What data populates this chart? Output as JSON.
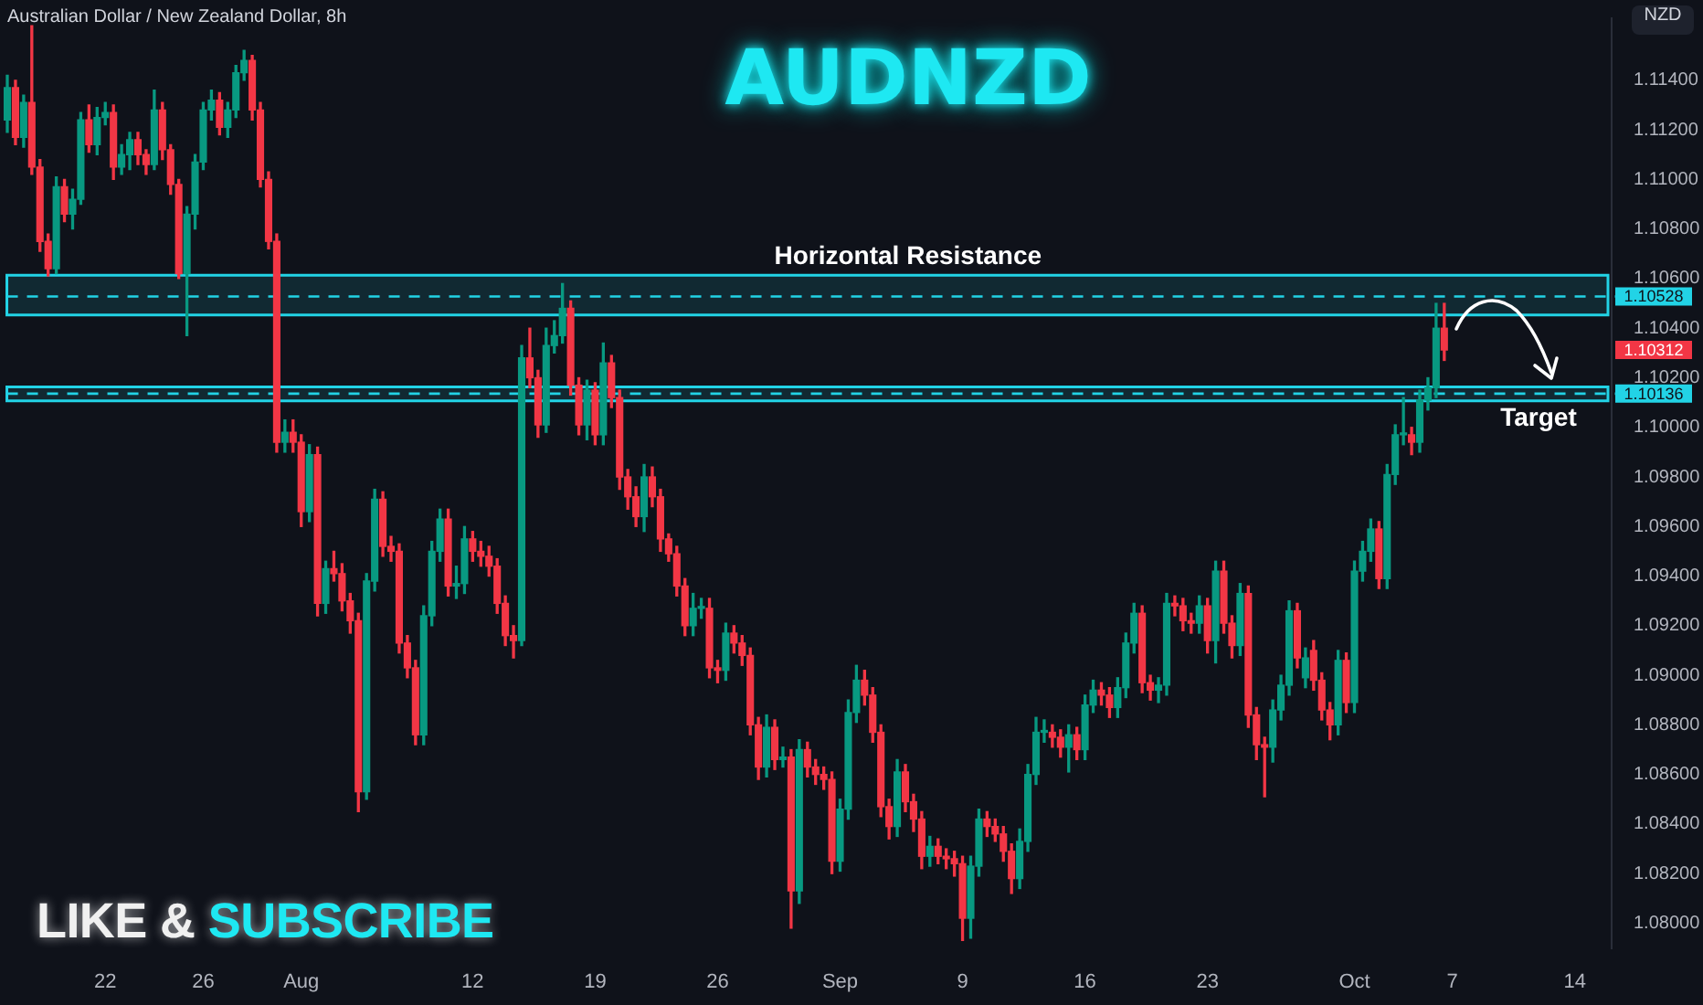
{
  "chart_data": {
    "type": "candlestick",
    "title": "AUDNZD",
    "subtitle": "Australian Dollar / New Zealand Dollar, 8h",
    "ylabel": "NZD",
    "categories": [
      null,
      null,
      null,
      null,
      null,
      null,
      null,
      null,
      null,
      null,
      null,
      null,
      "22",
      null,
      null,
      null,
      null,
      null,
      null,
      null,
      null,
      null,
      null,
      null,
      "26",
      null,
      null,
      null,
      null,
      null,
      null,
      null,
      null,
      null,
      null,
      null,
      "Aug",
      null,
      null,
      null,
      null,
      null,
      null,
      null,
      null,
      null,
      null,
      null,
      null,
      null,
      null,
      null,
      null,
      null,
      null,
      null,
      null,
      "12",
      null,
      null,
      null,
      null,
      null,
      null,
      null,
      null,
      null,
      null,
      null,
      null,
      null,
      null,
      "19",
      null,
      null,
      null,
      null,
      null,
      null,
      null,
      null,
      null,
      null,
      null,
      null,
      null,
      null,
      "26",
      null,
      null,
      null,
      null,
      null,
      null,
      null,
      null,
      null,
      null,
      null,
      null,
      null,
      null,
      "Sep",
      null,
      null,
      null,
      null,
      null,
      null,
      null,
      null,
      null,
      null,
      null,
      null,
      null,
      null,
      "9",
      null,
      null,
      null,
      null,
      null,
      null,
      null,
      null,
      null,
      null,
      null,
      null,
      null,
      null,
      "16",
      null,
      null,
      null,
      null,
      null,
      null,
      null,
      null,
      null,
      null,
      null,
      null,
      null,
      null,
      "23",
      null,
      null,
      null,
      null,
      null,
      null,
      null,
      null,
      null,
      null,
      null,
      null,
      null,
      null,
      null,
      null,
      null,
      "Oct",
      null,
      null,
      null,
      null,
      null,
      null,
      null,
      null,
      null,
      null,
      null,
      "7",
      null,
      null,
      null,
      null,
      null,
      null,
      null,
      null,
      null,
      null,
      null,
      null,
      null,
      null,
      "14",
      null,
      null,
      null,
      null
    ],
    "ohlc": [
      [
        1.1124,
        1.1142,
        1.1119,
        1.1137
      ],
      [
        1.1137,
        1.114,
        1.1114,
        1.1117
      ],
      [
        1.1117,
        1.1134,
        1.1113,
        1.1131
      ],
      [
        1.1131,
        1.1162,
        1.1102,
        1.1105
      ],
      [
        1.1105,
        1.1108,
        1.1071,
        1.1075
      ],
      [
        1.1075,
        1.1078,
        1.1061,
        1.1064
      ],
      [
        1.1064,
        1.1101,
        1.1062,
        1.1097
      ],
      [
        1.1097,
        1.11,
        1.1083,
        1.1086
      ],
      [
        1.1086,
        1.1096,
        1.108,
        1.1092
      ],
      [
        1.1092,
        1.1127,
        1.109,
        1.1124
      ],
      [
        1.1124,
        1.113,
        1.1111,
        1.1114
      ],
      [
        1.1114,
        1.1129,
        1.111,
        1.1125
      ],
      [
        1.1125,
        1.1131,
        1.1122,
        1.1127
      ],
      [
        1.1127,
        1.113,
        1.11,
        1.1105
      ],
      [
        1.1105,
        1.1114,
        1.1102,
        1.111
      ],
      [
        1.111,
        1.1119,
        1.1104,
        1.1116
      ],
      [
        1.1116,
        1.1119,
        1.1106,
        1.111
      ],
      [
        1.111,
        1.1112,
        1.1102,
        1.1106
      ],
      [
        1.1106,
        1.1136,
        1.1104,
        1.1128
      ],
      [
        1.1128,
        1.1131,
        1.1108,
        1.1112
      ],
      [
        1.1112,
        1.1114,
        1.1094,
        1.1098
      ],
      [
        1.1098,
        1.11,
        1.106,
        1.1062
      ],
      [
        1.1062,
        1.1089,
        1.1037,
        1.1086
      ],
      [
        1.1086,
        1.111,
        1.108,
        1.1107
      ],
      [
        1.1107,
        1.1131,
        1.1104,
        1.1128
      ],
      [
        1.1128,
        1.1136,
        1.1124,
        1.1132
      ],
      [
        1.1132,
        1.1135,
        1.1118,
        1.1121
      ],
      [
        1.1121,
        1.1131,
        1.1117,
        1.1128
      ],
      [
        1.1128,
        1.1146,
        1.1125,
        1.1143
      ],
      [
        1.1143,
        1.1152,
        1.114,
        1.1148
      ],
      [
        1.1148,
        1.115,
        1.1124,
        1.1128
      ],
      [
        1.1128,
        1.1131,
        1.1097,
        1.11
      ],
      [
        1.11,
        1.1103,
        1.1072,
        1.1075
      ],
      [
        1.1075,
        1.1078,
        1.099,
        1.0994
      ],
      [
        1.0994,
        1.1003,
        1.099,
        1.0998
      ],
      [
        1.0998,
        1.1003,
        1.099,
        1.0994
      ],
      [
        1.0994,
        1.0997,
        1.096,
        1.0966
      ],
      [
        1.0966,
        1.0993,
        1.0962,
        1.0989
      ],
      [
        1.0989,
        1.0992,
        1.0924,
        1.0929
      ],
      [
        1.0929,
        1.0946,
        1.0925,
        1.0943
      ],
      [
        1.0943,
        1.095,
        1.0938,
        1.0941
      ],
      [
        1.0941,
        1.0945,
        1.0926,
        1.093
      ],
      [
        1.093,
        1.0933,
        1.0917,
        1.0922
      ],
      [
        1.0922,
        1.0925,
        1.0845,
        1.0853
      ],
      [
        1.0853,
        1.0941,
        1.085,
        1.0938
      ],
      [
        1.0938,
        1.0975,
        1.0934,
        1.0971
      ],
      [
        1.0971,
        1.0974,
        1.0948,
        1.0952
      ],
      [
        1.0952,
        1.0956,
        1.0946,
        1.095
      ],
      [
        1.095,
        1.0953,
        1.0909,
        1.0913
      ],
      [
        1.0913,
        1.0916,
        1.0899,
        1.0903
      ],
      [
        1.0903,
        1.0906,
        1.0872,
        1.0876
      ],
      [
        1.0876,
        1.0928,
        1.0872,
        1.0924
      ],
      [
        1.0924,
        1.0954,
        1.092,
        1.095
      ],
      [
        1.095,
        1.0967,
        1.0946,
        1.0963
      ],
      [
        1.0963,
        1.0967,
        1.0932,
        1.0936
      ],
      [
        1.0936,
        1.0944,
        1.0931,
        1.0937
      ],
      [
        1.0937,
        1.096,
        1.0933,
        1.0955
      ],
      [
        1.0955,
        1.0958,
        1.0946,
        1.095
      ],
      [
        1.095,
        1.0954,
        1.0944,
        1.0948
      ],
      [
        1.0948,
        1.0952,
        1.094,
        1.0944
      ],
      [
        1.0944,
        1.0947,
        1.0925,
        1.0929
      ],
      [
        1.0929,
        1.0932,
        1.0912,
        1.0916
      ],
      [
        1.0916,
        1.092,
        1.0907,
        1.0914
      ],
      [
        1.0914,
        1.1033,
        1.0912,
        1.1028
      ],
      [
        1.1028,
        1.104,
        1.1016,
        1.102
      ],
      [
        1.102,
        1.1023,
        1.0996,
        1.1001
      ],
      [
        1.1001,
        1.104,
        1.0998,
        1.1033
      ],
      [
        1.1033,
        1.1043,
        1.103,
        1.1037
      ],
      [
        1.1037,
        1.1058,
        1.1034,
        1.1048
      ],
      [
        1.1048,
        1.1051,
        1.1013,
        1.1017
      ],
      [
        1.1017,
        1.102,
        1.0997,
        1.1001
      ],
      [
        1.1001,
        1.1019,
        1.0995,
        1.1015
      ],
      [
        1.1015,
        1.1018,
        1.0993,
        1.0997
      ],
      [
        1.0997,
        1.1034,
        1.0993,
        1.1026
      ],
      [
        1.1026,
        1.1029,
        1.1008,
        1.1012
      ],
      [
        1.1012,
        1.1015,
        1.0975,
        1.098
      ],
      [
        1.098,
        1.0983,
        1.0967,
        1.0972
      ],
      [
        1.0972,
        1.0976,
        1.096,
        1.0964
      ],
      [
        1.0964,
        1.0985,
        1.0958,
        1.098
      ],
      [
        1.098,
        1.0984,
        1.0968,
        1.0972
      ],
      [
        1.0972,
        1.0975,
        1.095,
        1.0955
      ],
      [
        1.0955,
        1.0957,
        1.0946,
        1.0949
      ],
      [
        1.0949,
        1.0952,
        1.0932,
        1.0936
      ],
      [
        1.0936,
        1.0939,
        1.0916,
        1.092
      ],
      [
        1.092,
        1.0933,
        1.0916,
        1.0927
      ],
      [
        1.0927,
        1.0931,
        1.0923,
        1.0927
      ],
      [
        1.0927,
        1.0931,
        1.0899,
        1.0903
      ],
      [
        1.0903,
        1.0906,
        1.0897,
        1.0902
      ],
      [
        1.0902,
        1.0921,
        1.0898,
        1.0917
      ],
      [
        1.0917,
        1.092,
        1.0909,
        1.0913
      ],
      [
        1.0913,
        1.0916,
        1.0904,
        1.0908
      ],
      [
        1.0908,
        1.0911,
        1.0876,
        1.088
      ],
      [
        1.088,
        1.0883,
        1.0858,
        1.0863
      ],
      [
        1.0863,
        1.0884,
        1.0859,
        1.0879
      ],
      [
        1.0879,
        1.0882,
        1.0862,
        1.0866
      ],
      [
        1.0866,
        1.0871,
        1.0863,
        1.0867
      ],
      [
        1.0867,
        1.087,
        1.0798,
        1.0813
      ],
      [
        1.0813,
        1.0874,
        1.0808,
        1.087
      ],
      [
        1.087,
        1.0873,
        1.0859,
        1.0863
      ],
      [
        1.0863,
        1.0866,
        1.0856,
        1.086
      ],
      [
        1.086,
        1.0863,
        1.0854,
        1.0858
      ],
      [
        1.0858,
        1.0861,
        1.082,
        1.0825
      ],
      [
        1.0825,
        1.085,
        1.0821,
        1.0846
      ],
      [
        1.0846,
        1.089,
        1.0842,
        1.0885
      ],
      [
        1.0885,
        1.0904,
        1.0881,
        1.0898
      ],
      [
        1.0898,
        1.0902,
        1.0888,
        1.0892
      ],
      [
        1.0892,
        1.0895,
        1.0873,
        1.0877
      ],
      [
        1.0877,
        1.088,
        1.0843,
        1.0847
      ],
      [
        1.0847,
        1.085,
        1.0834,
        1.0839
      ],
      [
        1.0839,
        1.0866,
        1.0835,
        1.0861
      ],
      [
        1.0861,
        1.0864,
        1.0845,
        1.0849
      ],
      [
        1.0849,
        1.0852,
        1.0837,
        1.0842
      ],
      [
        1.0842,
        1.0845,
        1.0822,
        1.0827
      ],
      [
        1.0827,
        1.0835,
        1.0823,
        1.0831
      ],
      [
        1.0831,
        1.0834,
        1.0824,
        1.0827
      ],
      [
        1.0827,
        1.083,
        1.0822,
        1.0826
      ],
      [
        1.0826,
        1.0829,
        1.0819,
        1.0824
      ],
      [
        1.0824,
        1.0827,
        1.0793,
        1.0802
      ],
      [
        1.0802,
        1.0827,
        1.0794,
        1.0823
      ],
      [
        1.0823,
        1.0846,
        1.0819,
        1.0842
      ],
      [
        1.0842,
        1.0845,
        1.0835,
        1.0839
      ],
      [
        1.0839,
        1.0842,
        1.0833,
        1.0836
      ],
      [
        1.0836,
        1.0839,
        1.0825,
        1.0829
      ],
      [
        1.0829,
        1.0832,
        1.0812,
        1.0818
      ],
      [
        1.0818,
        1.0838,
        1.0814,
        1.0833
      ],
      [
        1.0833,
        1.0864,
        1.0829,
        1.086
      ],
      [
        1.086,
        1.0883,
        1.0856,
        1.0877
      ],
      [
        1.0877,
        1.0882,
        1.0873,
        1.0877
      ],
      [
        1.0877,
        1.088,
        1.0871,
        1.0875
      ],
      [
        1.0875,
        1.0878,
        1.0867,
        1.0871
      ],
      [
        1.0871,
        1.088,
        1.0861,
        1.0876
      ],
      [
        1.0876,
        1.0879,
        1.0866,
        1.087
      ],
      [
        1.087,
        1.0892,
        1.0866,
        1.0888
      ],
      [
        1.0888,
        1.0898,
        1.0885,
        1.0894
      ],
      [
        1.0894,
        1.0897,
        1.0888,
        1.0892
      ],
      [
        1.0892,
        1.0895,
        1.0883,
        1.0887
      ],
      [
        1.0887,
        1.0899,
        1.0883,
        1.0895
      ],
      [
        1.0895,
        1.0917,
        1.0891,
        1.0913
      ],
      [
        1.0913,
        1.0929,
        1.0909,
        1.0925
      ],
      [
        1.0925,
        1.0928,
        1.0893,
        1.0897
      ],
      [
        1.0897,
        1.09,
        1.089,
        1.0894
      ],
      [
        1.0894,
        1.0899,
        1.0889,
        1.0896
      ],
      [
        1.0896,
        1.0933,
        1.0892,
        1.0929
      ],
      [
        1.0929,
        1.0932,
        1.0924,
        1.0928
      ],
      [
        1.0928,
        1.0931,
        1.0918,
        1.0922
      ],
      [
        1.0922,
        1.0925,
        1.0917,
        1.0921
      ],
      [
        1.0921,
        1.0932,
        1.0917,
        1.0928
      ],
      [
        1.0928,
        1.0931,
        1.0909,
        1.0914
      ],
      [
        1.0914,
        1.0946,
        1.0905,
        1.0942
      ],
      [
        1.0942,
        1.0946,
        1.0917,
        1.0921
      ],
      [
        1.0921,
        1.0924,
        1.0907,
        1.0912
      ],
      [
        1.0912,
        1.0937,
        1.0908,
        1.0933
      ],
      [
        1.0933,
        1.0936,
        1.0879,
        1.0884
      ],
      [
        1.0884,
        1.0887,
        1.0866,
        1.0872
      ],
      [
        1.0872,
        1.0875,
        1.0851,
        1.0871
      ],
      [
        1.0871,
        1.089,
        1.0865,
        1.0886
      ],
      [
        1.0886,
        1.09,
        1.0882,
        1.0896
      ],
      [
        1.0896,
        1.093,
        1.0892,
        1.0926
      ],
      [
        1.0926,
        1.0929,
        1.0903,
        1.0907
      ],
      [
        1.0899,
        1.0911,
        1.0895,
        1.0907
      ],
      [
        1.091,
        1.0914,
        1.0894,
        1.0898
      ],
      [
        1.0898,
        1.0901,
        1.0882,
        1.0886
      ],
      [
        1.0886,
        1.0889,
        1.0874,
        1.088
      ],
      [
        1.088,
        1.091,
        1.0876,
        1.0906
      ],
      [
        1.0906,
        1.0909,
        1.0885,
        1.0889
      ],
      [
        1.0889,
        1.0946,
        1.0885,
        1.0942
      ],
      [
        1.0942,
        1.0954,
        1.0938,
        1.095
      ],
      [
        1.095,
        1.0963,
        1.0946,
        1.0959
      ],
      [
        1.0959,
        1.0962,
        1.0935,
        1.0939
      ],
      [
        1.0939,
        1.0985,
        1.0935,
        1.0981
      ],
      [
        1.0981,
        1.1001,
        1.0977,
        1.0997
      ],
      [
        1.0997,
        1.1012,
        1.0993,
        1.0997
      ],
      [
        1.0997,
        1.1,
        1.0989,
        1.0994
      ],
      [
        1.0994,
        1.1015,
        1.099,
        1.1011
      ],
      [
        1.1011,
        1.102,
        1.1007,
        1.1016
      ],
      [
        1.1016,
        1.105,
        1.1012,
        1.104
      ],
      [
        1.104,
        1.105,
        1.1027,
        1.10312
      ],
      null,
      null,
      null,
      null,
      null,
      null,
      null,
      null,
      null,
      null,
      null,
      null,
      null,
      null,
      null,
      null,
      null,
      null,
      null,
      null
    ],
    "ylim": [
      1.079,
      1.1165
    ],
    "yticks": [
      {
        "value": 1.08,
        "label": "1.08000"
      },
      {
        "value": 1.082,
        "label": "1.08200"
      },
      {
        "value": 1.084,
        "label": "1.08400"
      },
      {
        "value": 1.086,
        "label": "1.08600"
      },
      {
        "value": 1.088,
        "label": "1.08800"
      },
      {
        "value": 1.09,
        "label": "1.09000"
      },
      {
        "value": 1.092,
        "label": "1.09200"
      },
      {
        "value": 1.094,
        "label": "1.09400"
      },
      {
        "value": 1.096,
        "label": "1.09600"
      },
      {
        "value": 1.098,
        "label": "1.09800"
      },
      {
        "value": 1.1,
        "label": "1.10000"
      },
      {
        "value": 1.102,
        "label": "1.10200"
      },
      {
        "value": 1.104,
        "label": "1.10400"
      },
      {
        "value": 1.106,
        "label": "1.10600"
      },
      {
        "value": 1.108,
        "label": "1.10800"
      },
      {
        "value": 1.11,
        "label": "1.11000"
      },
      {
        "value": 1.112,
        "label": "1.11200"
      },
      {
        "value": 1.114,
        "label": "1.11400"
      }
    ],
    "bands": [
      {
        "axis": "y",
        "from": 1.10453,
        "to": 1.10614,
        "label": "Horizontal Resistance",
        "color": "#22d3e6"
      },
      {
        "axis": "y",
        "from": 1.10107,
        "to": 1.10163,
        "label": "Target",
        "color": "#22d3e6"
      }
    ],
    "ref_lines": [
      {
        "axis": "y",
        "value": 1.10528,
        "label": "1.10528",
        "color": "#22d3e6",
        "line_style": "dashed"
      },
      {
        "axis": "y",
        "value": 1.10136,
        "label": "1.10136",
        "color": "#22d3e6",
        "line_style": "dashed"
      }
    ],
    "annotations": [
      "LIKE & SUBSCRIBE",
      "1.10312"
    ]
  }
}
